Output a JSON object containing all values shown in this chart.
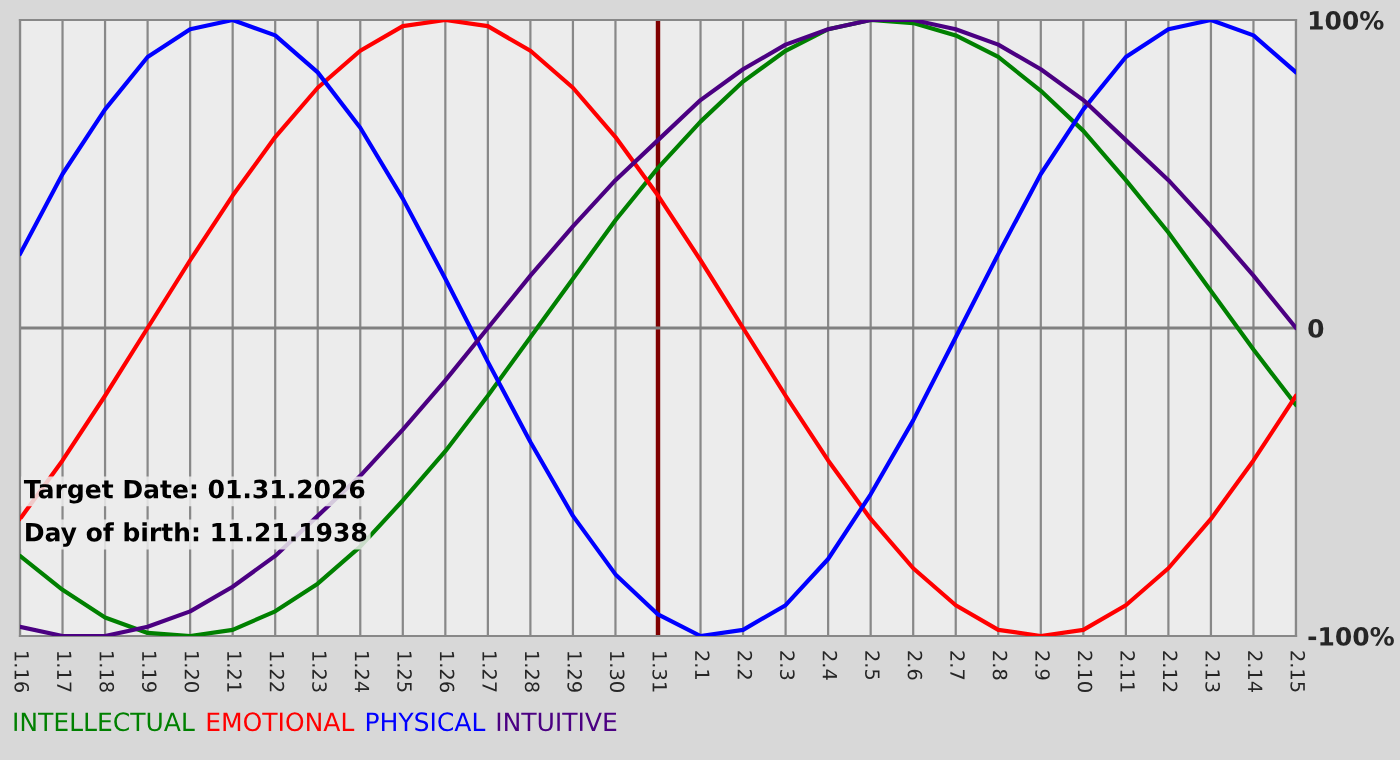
{
  "chart_data": {
    "type": "line",
    "categories": [
      "1.16",
      "1.17",
      "1.18",
      "1.19",
      "1.20",
      "1.21",
      "1.22",
      "1.23",
      "1.24",
      "1.25",
      "1.26",
      "1.27",
      "1.28",
      "1.29",
      "1.30",
      "1.31",
      "2.1",
      "2.2",
      "2.3",
      "2.4",
      "2.5",
      "2.6",
      "2.7",
      "2.8",
      "2.9",
      "2.10",
      "2.11",
      "2.12",
      "2.13",
      "2.14",
      "2.15"
    ],
    "series": [
      {
        "name": "INTELLECTUAL",
        "color": "#008000",
        "values": [
          -74,
          -85,
          -94,
          -99,
          -100,
          -98,
          -92,
          -83,
          -71,
          -56,
          -40,
          -22,
          -3,
          16,
          35,
          52,
          67,
          80,
          90,
          97,
          100,
          99,
          95,
          88,
          77,
          64,
          48,
          31,
          12,
          -7,
          -25
        ]
      },
      {
        "name": "EMOTIONAL",
        "color": "#ff0000",
        "values": [
          -62,
          -43,
          -22,
          0,
          22,
          43,
          62,
          78,
          90,
          98,
          100,
          98,
          90,
          78,
          62,
          43,
          22,
          0,
          -22,
          -43,
          -62,
          -78,
          -90,
          -98,
          -100,
          -98,
          -90,
          -78,
          -62,
          -43,
          -22
        ]
      },
      {
        "name": "PHYSICAL",
        "color": "#0000ff",
        "values": [
          24,
          50,
          71,
          88,
          97,
          100,
          95,
          83,
          65,
          42,
          16,
          -11,
          -37,
          -61,
          -80,
          -93,
          -100,
          -98,
          -90,
          -75,
          -54,
          -30,
          -3,
          24,
          50,
          71,
          88,
          97,
          100,
          95,
          83
        ]
      },
      {
        "name": "INTUITIVE",
        "color": "#4b0082",
        "values": [
          -97,
          -100,
          -100,
          -97,
          -92,
          -84,
          -74,
          -61,
          -48,
          -33,
          -17,
          0,
          17,
          33,
          48,
          61,
          74,
          84,
          92,
          97,
          100,
          100,
          97,
          92,
          84,
          74,
          61,
          48,
          33,
          17,
          0
        ]
      }
    ],
    "ylim": [
      -100,
      100
    ],
    "yticks": [
      {
        "value": 100,
        "label": "100%"
      },
      0,
      {
        "value": -100,
        "label": "-100%"
      }
    ],
    "grid": "x",
    "legend": "bottom",
    "line_style": "solid",
    "ref_lines": [
      {
        "axis": "x",
        "value": "1.31",
        "color": "#800000"
      },
      {
        "axis": "y",
        "value": 0,
        "color": "#808080"
      }
    ],
    "annotations": [
      "Target Date: 01.31.2026",
      "Day of birth: 11.21.1938"
    ]
  }
}
